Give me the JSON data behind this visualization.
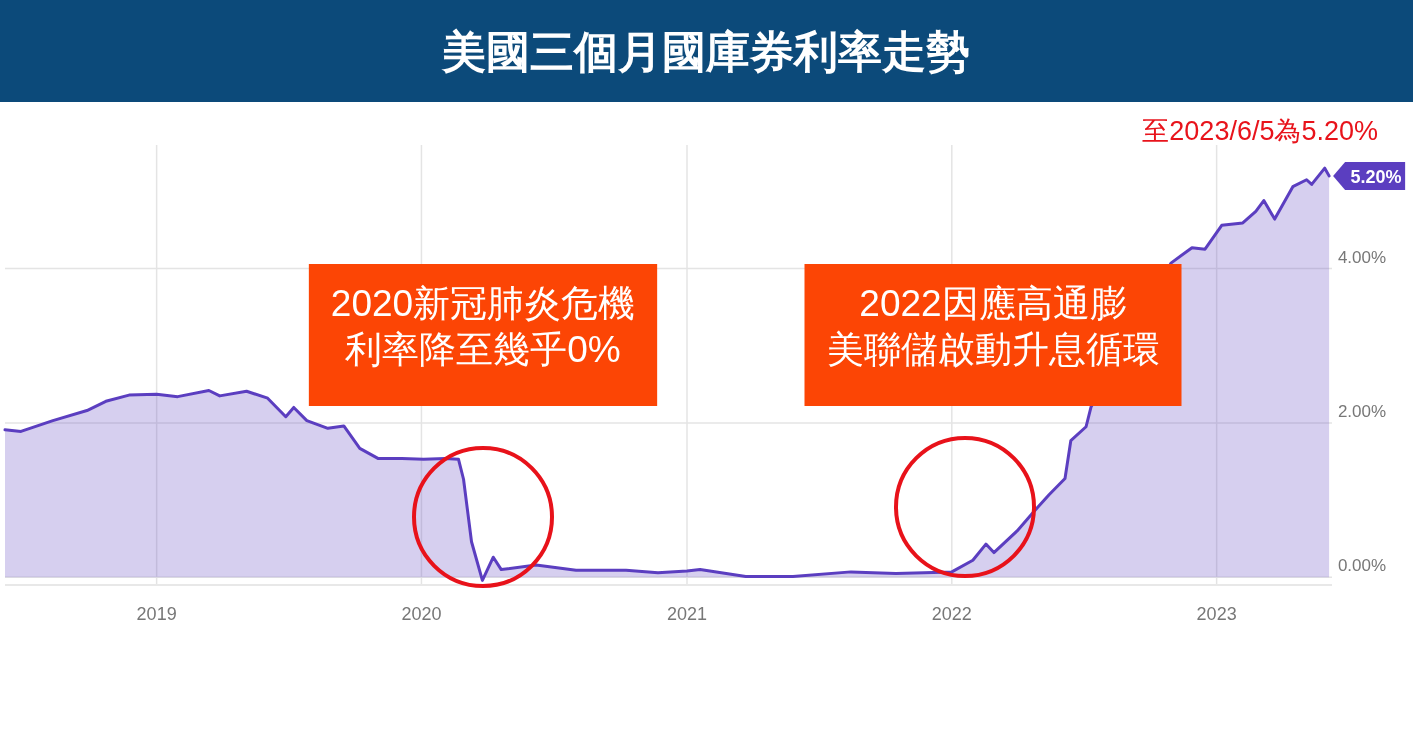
{
  "chart_data": {
    "type": "area",
    "title": "美國三個月國庫券利率走勢",
    "x": [
      "2018-06-06",
      "2018-06-28",
      "2018-08-11",
      "2018-09-27",
      "2018-10-23",
      "2018-11-24",
      "2019-01-01",
      "2019-01-30",
      "2019-03-14",
      "2019-03-29",
      "2019-05-05",
      "2019-06-03",
      "2019-06-28",
      "2019-07-09",
      "2019-07-27",
      "2019-08-25",
      "2019-09-16",
      "2019-10-08",
      "2019-11-02",
      "2019-12-05",
      "2020-01-04",
      "2020-02-03",
      "2020-02-21",
      "2020-02-28",
      "2020-03-10",
      "2020-03-25",
      "2020-04-09",
      "2020-04-20",
      "2020-06-07",
      "2020-08-01",
      "2020-10-09",
      "2020-11-22",
      "2021-01-01",
      "2021-01-19",
      "2021-03-23",
      "2021-05-27",
      "2021-08-15",
      "2021-10-16",
      "2022-01-01",
      "2022-01-30",
      "2022-02-17",
      "2022-02-28",
      "2022-04-01",
      "2022-04-23",
      "2022-05-15",
      "2022-06-06",
      "2022-06-14",
      "2022-07-05",
      "2022-07-12",
      "2022-10-30",
      "2022-11-28",
      "2022-12-16",
      "2023-01-08",
      "2023-02-06",
      "2023-02-24",
      "2023-03-07",
      "2023-03-22",
      "2023-04-16",
      "2023-05-05",
      "2023-05-12",
      "2023-05-30",
      "2023-06-05"
    ],
    "series": [
      {
        "color": "#5b3ec0",
        "values": [
          1.91,
          1.89,
          2.03,
          2.16,
          2.28,
          2.36,
          2.37,
          2.34,
          2.42,
          2.35,
          2.41,
          2.32,
          2.08,
          2.2,
          2.03,
          1.93,
          1.96,
          1.67,
          1.54,
          1.54,
          1.53,
          1.54,
          1.53,
          1.27,
          0.46,
          -0.04,
          0.26,
          0.1,
          0.16,
          0.09,
          0.09,
          0.06,
          0.08,
          0.1,
          0.01,
          0.01,
          0.07,
          0.05,
          0.07,
          0.22,
          0.43,
          0.32,
          0.6,
          0.84,
          1.07,
          1.28,
          1.77,
          1.95,
          2.21,
          4.07,
          4.27,
          4.25,
          4.56,
          4.59,
          4.74,
          4.88,
          4.64,
          5.06,
          5.15,
          5.09,
          5.3,
          5.2
        ]
      }
    ],
    "xlim": [
      "2018-06-06",
      "2023-06-09"
    ],
    "xticks": [
      {
        "value": "2019-01-01",
        "label": "2019"
      },
      {
        "value": "2020-01-01",
        "label": "2020"
      },
      {
        "value": "2021-01-01",
        "label": "2021"
      },
      {
        "value": "2022-01-01",
        "label": "2022"
      },
      {
        "value": "2023-01-01",
        "label": "2023"
      }
    ],
    "ylim": [
      -0.1,
      5.6
    ],
    "yticks": [
      {
        "value": 0,
        "label": "0.00%"
      },
      {
        "value": 2,
        "label": "2.00%"
      },
      {
        "value": 4,
        "label": "4.00%"
      }
    ],
    "grid": true,
    "annotations": [
      "至2023/6/5為5.20%",
      "2020新冠肺炎危機",
      "利率降至幾乎0%",
      "2022因應高通膨",
      "美聯儲啟動升息循環",
      {
        "text": "5.20%",
        "x": "2023-06-05",
        "y": 5.2
      }
    ]
  }
}
